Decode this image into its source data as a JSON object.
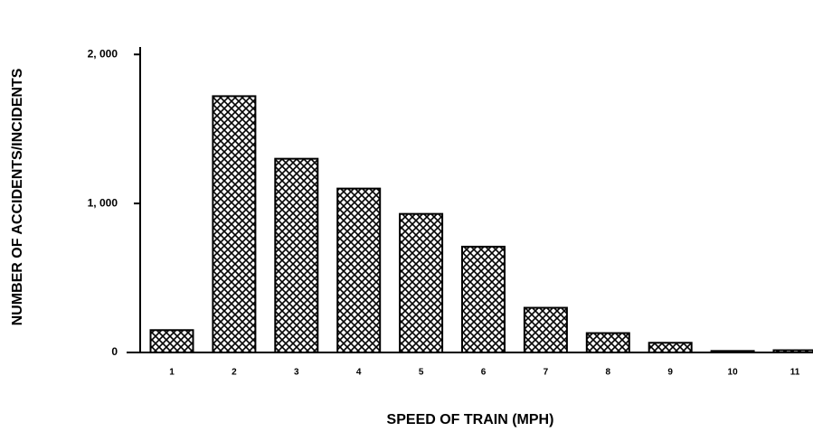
{
  "chart_data": {
    "type": "bar",
    "y_label": "NUMBER OF ACCIDENTS/INCIDENTS",
    "x_label": "SPEED OF TRAIN (MPH)",
    "categories": [
      "1",
      "2",
      "3",
      "4",
      "5",
      "6",
      "7",
      "8",
      "9",
      "10",
      "11"
    ],
    "values": [
      150,
      1720,
      1300,
      1100,
      930,
      710,
      300,
      130,
      65,
      10,
      15
    ],
    "color": "#000000",
    "ylim": [
      0,
      2050
    ],
    "yticks": [
      0,
      {
        "value": 1000,
        "label": "1, 000"
      },
      {
        "value": 2000,
        "label": "2, 000"
      }
    ],
    "grid": false
  }
}
